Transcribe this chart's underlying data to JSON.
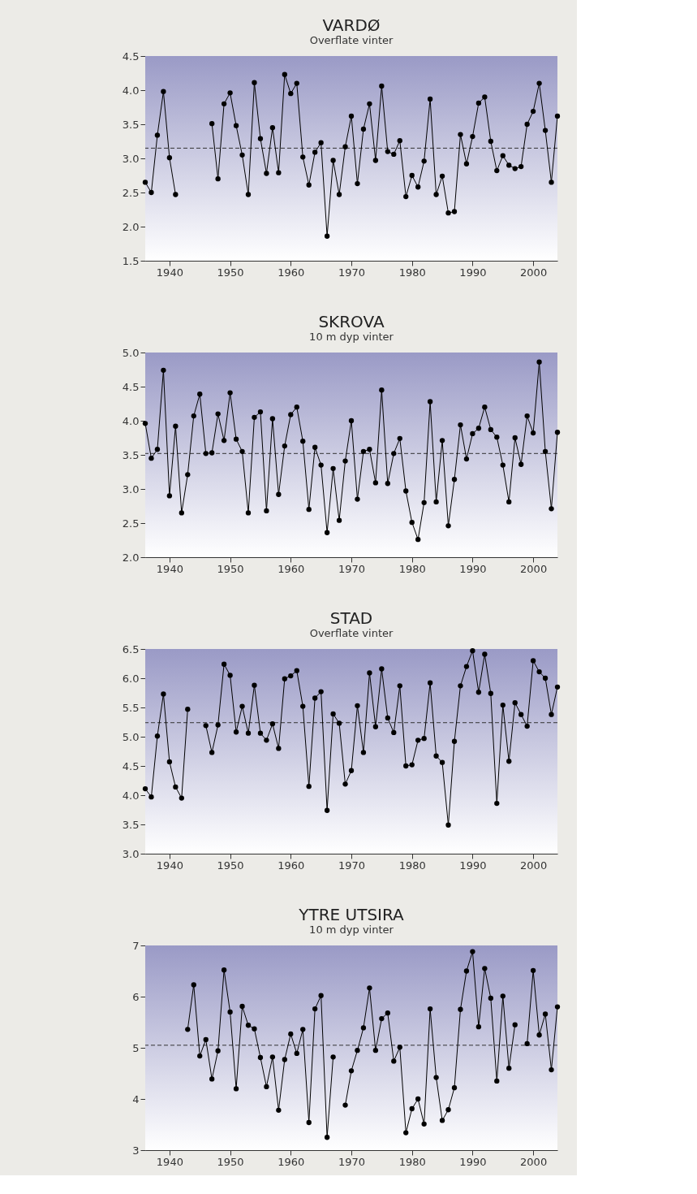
{
  "chart_data": [
    {
      "type": "line",
      "title": "VARDØ",
      "subtitle": "Overflate  vinter",
      "x": [
        1936,
        1937,
        1938,
        1939,
        1940,
        1941,
        1942,
        1943,
        1944,
        1945,
        1946,
        1947,
        1948,
        1949,
        1950,
        1951,
        1952,
        1953,
        1954,
        1955,
        1956,
        1957,
        1958,
        1959,
        1960,
        1961,
        1962,
        1963,
        1964,
        1965,
        1966,
        1967,
        1968,
        1969,
        1970,
        1971,
        1972,
        1973,
        1974,
        1975,
        1976,
        1977,
        1978,
        1979,
        1980,
        1981,
        1982,
        1983,
        1984,
        1985,
        1986,
        1987,
        1988,
        1989,
        1990,
        1991,
        1992,
        1993,
        1994,
        1995,
        1996,
        1997,
        1998,
        1999,
        2000,
        2001,
        2002,
        2003,
        2004
      ],
      "series": [
        {
          "color": "#000000",
          "values": [
            2.65,
            2.5,
            3.34,
            3.98,
            3.01,
            2.47,
            null,
            null,
            null,
            null,
            null,
            3.51,
            2.7,
            3.8,
            3.96,
            3.48,
            3.05,
            2.47,
            4.11,
            3.29,
            2.78,
            3.45,
            2.79,
            4.23,
            3.95,
            4.1,
            3.02,
            2.61,
            3.09,
            3.23,
            1.86,
            2.97,
            2.47,
            3.17,
            3.62,
            2.63,
            3.43,
            3.8,
            2.97,
            4.06,
            3.1,
            3.06,
            3.26,
            2.44,
            2.75,
            2.58,
            2.96,
            3.87,
            2.47,
            2.74,
            2.2,
            2.22,
            3.35,
            2.92,
            3.32,
            3.81,
            3.9,
            3.25,
            2.82,
            3.04,
            2.9,
            2.85,
            2.88,
            3.5,
            3.69,
            4.1,
            3.41,
            2.65,
            3.62
          ]
        }
      ],
      "xlim": [
        1936,
        2004
      ],
      "xticks": [
        1940,
        1950,
        1960,
        1970,
        1980,
        1990,
        2000
      ],
      "ylim": [
        1.5,
        4.5
      ],
      "yticks": [
        1.5,
        {
          "value": 2,
          "label": "2.0"
        },
        2.5,
        {
          "value": 3,
          "label": "3.0"
        },
        3.5,
        {
          "value": 4,
          "label": "4.0"
        },
        4.5
      ],
      "ref_lines": [
        {
          "axis": "y",
          "value": 3.15,
          "line_style": "dashed",
          "color": "#333333"
        }
      ],
      "marker": "circle",
      "line_style": "solid",
      "grid": false
    },
    {
      "type": "line",
      "title": "SKROVA",
      "subtitle": "10 m dyp  vinter",
      "x": [
        1936,
        1937,
        1938,
        1939,
        1940,
        1941,
        1942,
        1943,
        1944,
        1945,
        1946,
        1947,
        1948,
        1949,
        1950,
        1951,
        1952,
        1953,
        1954,
        1955,
        1956,
        1957,
        1958,
        1959,
        1960,
        1961,
        1962,
        1963,
        1964,
        1965,
        1966,
        1967,
        1968,
        1969,
        1970,
        1971,
        1972,
        1973,
        1974,
        1975,
        1976,
        1977,
        1978,
        1979,
        1980,
        1981,
        1982,
        1983,
        1984,
        1985,
        1986,
        1987,
        1988,
        1989,
        1990,
        1991,
        1992,
        1993,
        1994,
        1995,
        1996,
        1997,
        1998,
        1999,
        2000,
        2001,
        2002,
        2003,
        2004
      ],
      "series": [
        {
          "color": "#000000",
          "values": [
            3.96,
            3.45,
            3.58,
            4.74,
            2.9,
            3.92,
            2.65,
            3.21,
            4.07,
            4.39,
            3.52,
            3.53,
            4.1,
            3.71,
            4.41,
            3.73,
            3.55,
            2.65,
            4.05,
            4.13,
            2.68,
            4.03,
            2.92,
            3.63,
            4.09,
            4.2,
            3.7,
            2.7,
            3.61,
            3.35,
            2.36,
            3.3,
            2.54,
            3.41,
            4.0,
            2.85,
            3.55,
            3.58,
            3.09,
            4.45,
            3.08,
            3.52,
            3.74,
            2.97,
            2.51,
            2.26,
            2.8,
            4.28,
            2.81,
            3.71,
            2.46,
            3.14,
            3.94,
            3.44,
            3.81,
            3.89,
            4.2,
            3.87,
            3.76,
            3.35,
            2.81,
            3.75,
            3.36,
            4.07,
            3.82,
            4.86,
            3.55,
            2.71,
            3.83
          ]
        }
      ],
      "xlim": [
        1936,
        2004
      ],
      "xticks": [
        1940,
        1950,
        1960,
        1970,
        1980,
        1990,
        2000
      ],
      "ylim": [
        2,
        5
      ],
      "yticks": [
        {
          "value": 2,
          "label": "2.0"
        },
        2.5,
        {
          "value": 3,
          "label": "3.0"
        },
        3.5,
        {
          "value": 4,
          "label": "4.0"
        },
        4.5,
        {
          "value": 5,
          "label": "5.0"
        }
      ],
      "ref_lines": [
        {
          "axis": "y",
          "value": 3.52,
          "line_style": "dashed",
          "color": "#333333"
        }
      ],
      "marker": "circle",
      "line_style": "solid",
      "grid": false
    },
    {
      "type": "line",
      "title": "STAD",
      "subtitle": "Overflate  vinter",
      "x": [
        1936,
        1937,
        1938,
        1939,
        1940,
        1941,
        1942,
        1943,
        1944,
        1945,
        1946,
        1947,
        1948,
        1949,
        1950,
        1951,
        1952,
        1953,
        1954,
        1955,
        1956,
        1957,
        1958,
        1959,
        1960,
        1961,
        1962,
        1963,
        1964,
        1965,
        1966,
        1967,
        1968,
        1969,
        1970,
        1971,
        1972,
        1973,
        1974,
        1975,
        1976,
        1977,
        1978,
        1979,
        1980,
        1981,
        1982,
        1983,
        1984,
        1985,
        1986,
        1987,
        1988,
        1989,
        1990,
        1991,
        1992,
        1993,
        1994,
        1995,
        1996,
        1997,
        1998,
        1999,
        2000,
        2001,
        2002,
        2003,
        2004
      ],
      "series": [
        {
          "color": "#000000",
          "values": [
            4.11,
            3.97,
            5.01,
            5.73,
            4.57,
            4.14,
            3.95,
            5.47,
            null,
            null,
            5.19,
            4.73,
            5.2,
            6.24,
            6.05,
            5.08,
            5.52,
            5.06,
            5.88,
            5.06,
            4.94,
            5.22,
            4.8,
            5.99,
            6.04,
            6.13,
            5.52,
            4.15,
            5.66,
            5.77,
            3.74,
            5.39,
            5.23,
            4.19,
            4.42,
            5.53,
            4.73,
            6.09,
            5.17,
            6.16,
            5.32,
            5.07,
            5.87,
            4.5,
            4.52,
            4.94,
            4.97,
            5.92,
            4.67,
            4.56,
            3.49,
            4.92,
            5.87,
            6.2,
            6.47,
            5.76,
            6.41,
            5.74,
            3.86,
            5.54,
            4.58,
            5.58,
            5.38,
            5.18,
            6.3,
            6.11,
            6.0,
            5.38,
            5.85
          ]
        }
      ],
      "xlim": [
        1936,
        2004
      ],
      "xticks": [
        1940,
        1950,
        1960,
        1970,
        1980,
        1990,
        2000
      ],
      "ylim": [
        3,
        6.5
      ],
      "yticks": [
        {
          "value": 3,
          "label": "3.0"
        },
        3.5,
        {
          "value": 4,
          "label": "4.0"
        },
        4.5,
        {
          "value": 5,
          "label": "5.0"
        },
        5.5,
        {
          "value": 6,
          "label": "6.0"
        },
        6.5
      ],
      "ref_lines": [
        {
          "axis": "y",
          "value": 5.24,
          "line_style": "dashed",
          "color": "#333333"
        }
      ],
      "marker": "circle",
      "line_style": "solid",
      "grid": false
    },
    {
      "type": "line",
      "title": "YTRE UTSIRA",
      "subtitle": "10 m dyp  vinter",
      "x": [
        1943,
        1944,
        1945,
        1946,
        1947,
        1948,
        1949,
        1950,
        1951,
        1952,
        1953,
        1954,
        1955,
        1956,
        1957,
        1958,
        1959,
        1960,
        1961,
        1962,
        1963,
        1964,
        1965,
        1966,
        1967,
        1968,
        1969,
        1970,
        1971,
        1972,
        1973,
        1974,
        1975,
        1976,
        1977,
        1978,
        1979,
        1980,
        1981,
        1982,
        1983,
        1984,
        1985,
        1986,
        1987,
        1988,
        1989,
        1990,
        1991,
        1992,
        1993,
        1994,
        1995,
        1996,
        1997,
        1998,
        1999,
        2000,
        2001,
        2002,
        2003,
        2004
      ],
      "series": [
        {
          "color": "#000000",
          "values": [
            5.36,
            6.23,
            4.84,
            5.16,
            4.39,
            4.94,
            6.52,
            5.7,
            4.2,
            5.81,
            5.44,
            5.37,
            4.81,
            4.24,
            4.82,
            3.78,
            4.77,
            5.27,
            4.89,
            5.36,
            3.54,
            5.76,
            6.02,
            3.25,
            4.82,
            null,
            3.88,
            4.55,
            4.95,
            5.39,
            6.17,
            4.95,
            5.57,
            5.68,
            4.74,
            5.01,
            3.34,
            3.81,
            4.0,
            3.51,
            5.76,
            4.42,
            3.58,
            3.79,
            4.22,
            5.75,
            6.5,
            6.88,
            5.41,
            6.55,
            5.97,
            4.35,
            6.01,
            4.6,
            5.45,
            null,
            5.08,
            6.51,
            5.25,
            5.66,
            4.57,
            5.8
          ]
        }
      ],
      "xlim": [
        1936,
        2004
      ],
      "xticks": [
        1940,
        1950,
        1960,
        1970,
        1980,
        1990,
        2000
      ],
      "ylim": [
        3,
        7
      ],
      "yticks": [
        3,
        4,
        5,
        6,
        7
      ],
      "ref_lines": [
        {
          "axis": "y",
          "value": 5.05,
          "line_style": "dashed",
          "color": "#333333"
        }
      ],
      "marker": "circle",
      "line_style": "solid",
      "grid": false
    }
  ]
}
